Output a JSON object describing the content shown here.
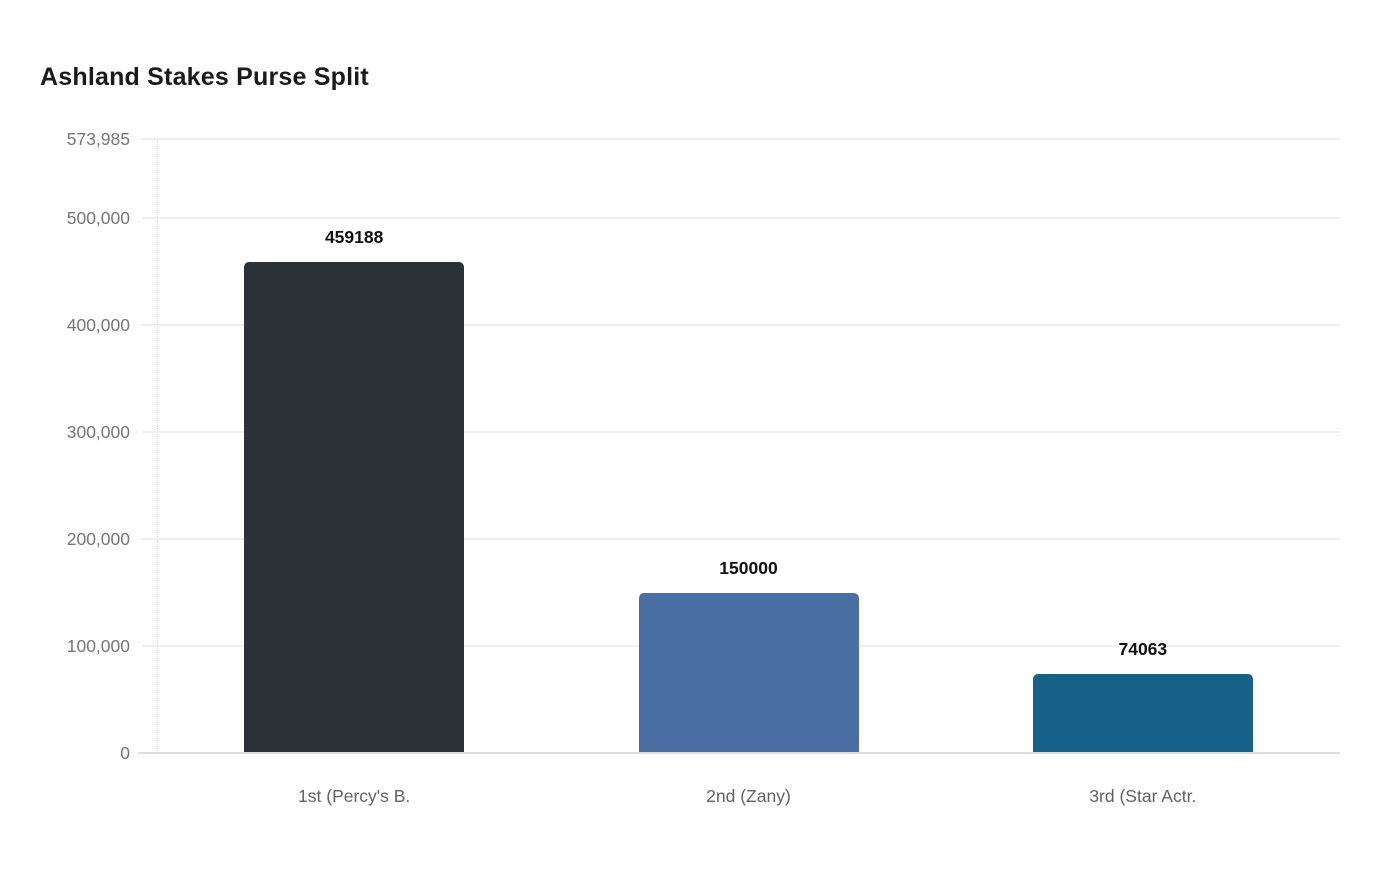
{
  "chart_data": {
    "type": "bar",
    "title": "Ashland Stakes Purse Split",
    "categories": [
      "1st (Percy's B.",
      "2nd (Zany)",
      "3rd (Star Actr."
    ],
    "values": [
      459188,
      150000,
      74063
    ],
    "data_labels": [
      "459188",
      "150000",
      "74063"
    ],
    "colors": [
      "#2b3236",
      "#4a6fa5",
      "#16608a"
    ],
    "y_ticks": [
      0,
      100000,
      200000,
      300000,
      400000,
      500000,
      573985
    ],
    "y_tick_labels": [
      "0",
      "100,000",
      "200,000",
      "300,000",
      "400,000",
      "500,000",
      "573,985"
    ],
    "ylim": [
      0,
      573985
    ],
    "xlabel": "",
    "ylabel": "",
    "grid": true,
    "legend": false,
    "background": "#ffffff",
    "style": {
      "title_color": "#1b1b1b",
      "tick_label_color": "#757575",
      "category_label_color": "#616161",
      "value_label_color": "#111111",
      "gridline_color": "#efefef",
      "zero_line_color": "#dcdee0",
      "axis_dotted_color": "#d4d4d4"
    }
  }
}
